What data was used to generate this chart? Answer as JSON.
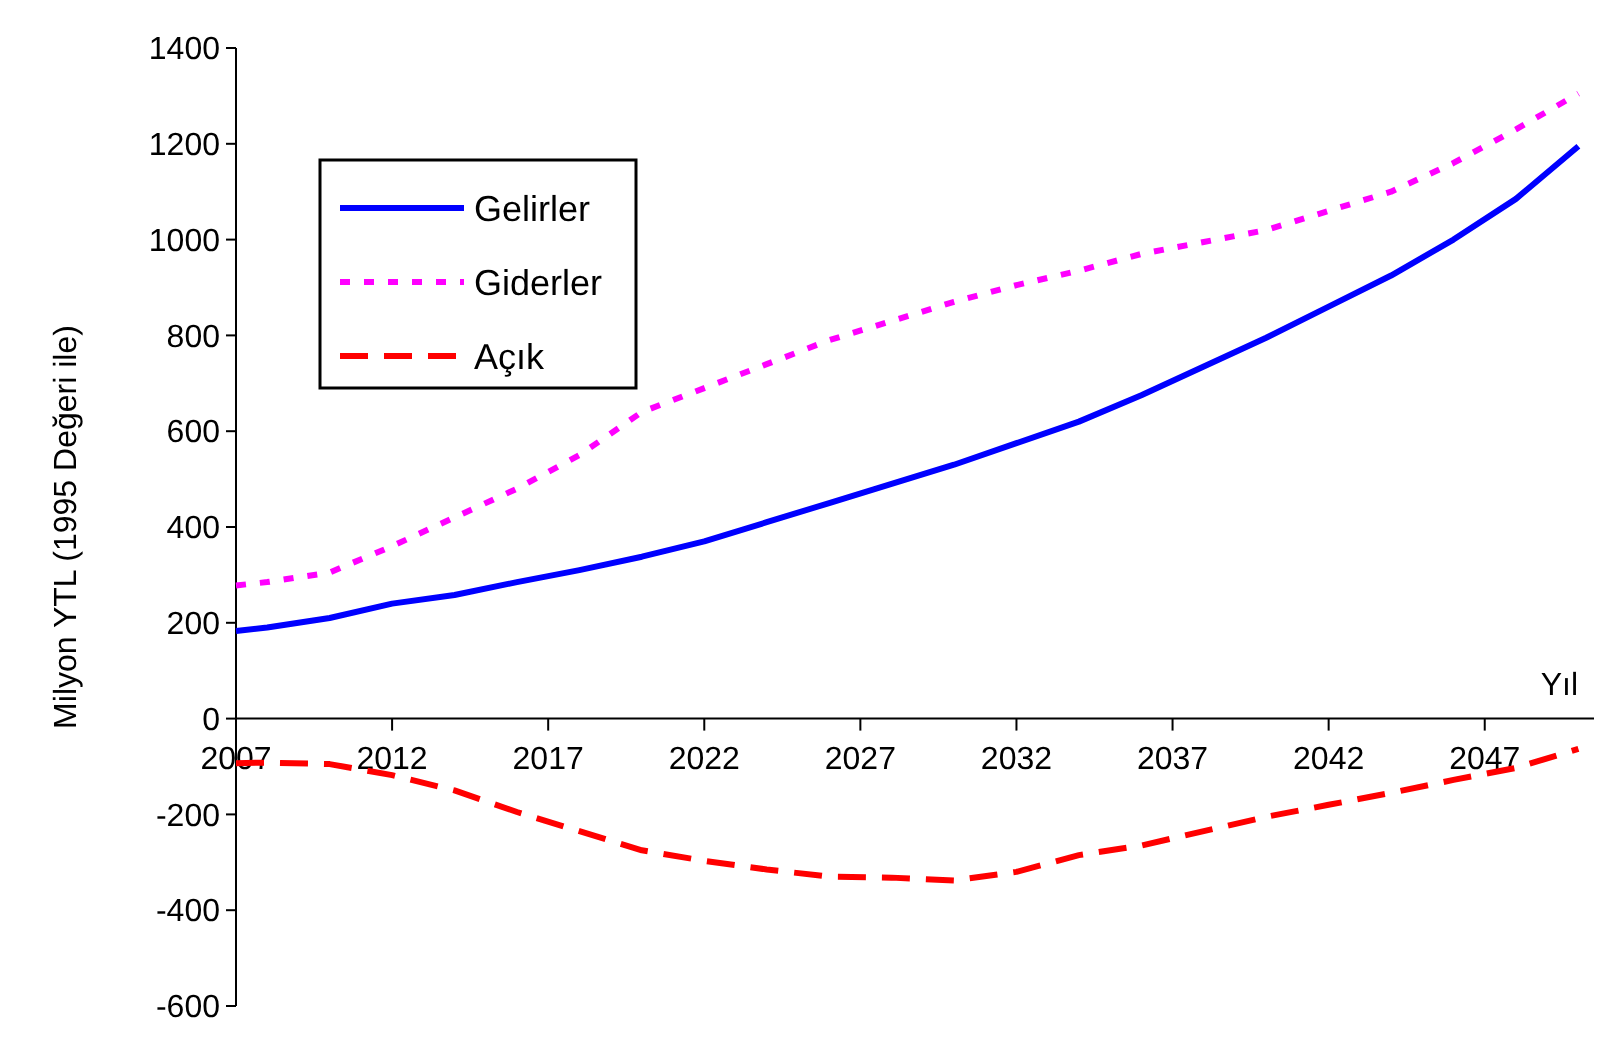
{
  "chart_data": {
    "type": "line",
    "ylabel": "Milyon YTL (1995 Değeri ile)",
    "xlabel": "Yıl",
    "x": [
      2007,
      2008,
      2010,
      2012,
      2014,
      2016,
      2018,
      2020,
      2022,
      2024,
      2026,
      2028,
      2030,
      2032,
      2034,
      2036,
      2038,
      2040,
      2042,
      2044,
      2046,
      2048,
      2050
    ],
    "xlim": [
      2007,
      2050.5
    ],
    "xticks": [
      2007,
      2012,
      2017,
      2022,
      2027,
      2032,
      2037,
      2042,
      2047
    ],
    "ylim": [
      -600,
      1400
    ],
    "yticks": [
      -600,
      -400,
      -200,
      0,
      200,
      400,
      600,
      800,
      1000,
      1200,
      1400
    ],
    "grid": false,
    "legend": "top left",
    "marker": "none",
    "series": [
      {
        "name": "Gelirler",
        "color": "#0000ff",
        "line_style": "solid",
        "values": [
          183,
          190,
          210,
          240,
          258,
          285,
          310,
          338,
          370,
          410,
          450,
          490,
          530,
          575,
          620,
          675,
          735,
          795,
          860,
          925,
          1000,
          1085,
          1195
        ]
      },
      {
        "name": "Giderler",
        "color": "#ff00ff",
        "line_style": "dotted",
        "values": [
          278,
          285,
          305,
          360,
          420,
          480,
          550,
          640,
          690,
          740,
          790,
          830,
          870,
          905,
          935,
          970,
          995,
          1020,
          1060,
          1100,
          1160,
          1230,
          1305
        ]
      },
      {
        "name": "Açık",
        "color": "#ff0000",
        "line_style": "dashed",
        "values": [
          -93,
          -92,
          -95,
          -118,
          -150,
          -195,
          -235,
          -275,
          -297,
          -315,
          -330,
          -332,
          -338,
          -320,
          -285,
          -265,
          -235,
          -205,
          -180,
          -155,
          -128,
          -103,
          -63
        ]
      }
    ]
  }
}
